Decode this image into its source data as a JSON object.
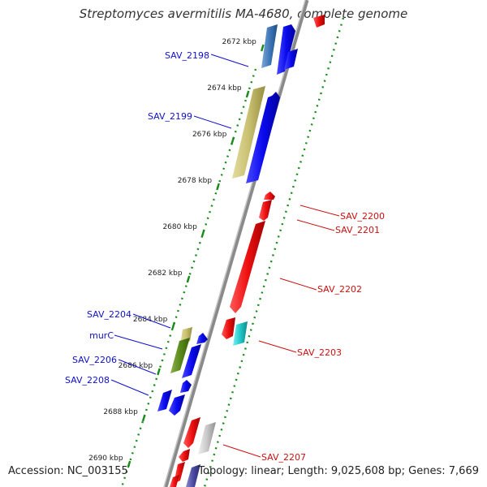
{
  "title": "Streptomyces avermitilis MA-4680, complete genome",
  "footer": {
    "accession": "Accession: NC_003155",
    "topology": "Topology: linear; Length: 9,025,608 bp; Genes: 7,669"
  },
  "ticks": [
    {
      "label": "2672 kbp",
      "kb": 2672
    },
    {
      "label": "2674 kbp",
      "kb": 2674
    },
    {
      "label": "2676 kbp",
      "kb": 2676
    },
    {
      "label": "2678 kbp",
      "kb": 2678
    },
    {
      "label": "2680 kbp",
      "kb": 2680
    },
    {
      "label": "2682 kbp",
      "kb": 2682
    },
    {
      "label": "2684 kbp",
      "kb": 2684
    },
    {
      "label": "2686 kbp",
      "kb": 2686
    },
    {
      "label": "2688 kbp",
      "kb": 2688
    },
    {
      "label": "2690 kbp",
      "kb": 2690
    }
  ],
  "gene_labels_left": [
    "SAV_2198",
    "SAV_2199",
    "SAV_2204",
    "murC",
    "SAV_2206",
    "SAV_2208"
  ],
  "gene_labels_right": [
    "SAV_2200",
    "SAV_2201",
    "SAV_2202",
    "SAV_2203",
    "SAV_2207"
  ],
  "colors": {
    "blue_gene": "#0a0aee",
    "red_gene": "#ee1010",
    "blue_label": "#1010cc",
    "red_label": "#cc1010",
    "tick_dots": "#1a8a1a",
    "backbone": "#888888"
  }
}
